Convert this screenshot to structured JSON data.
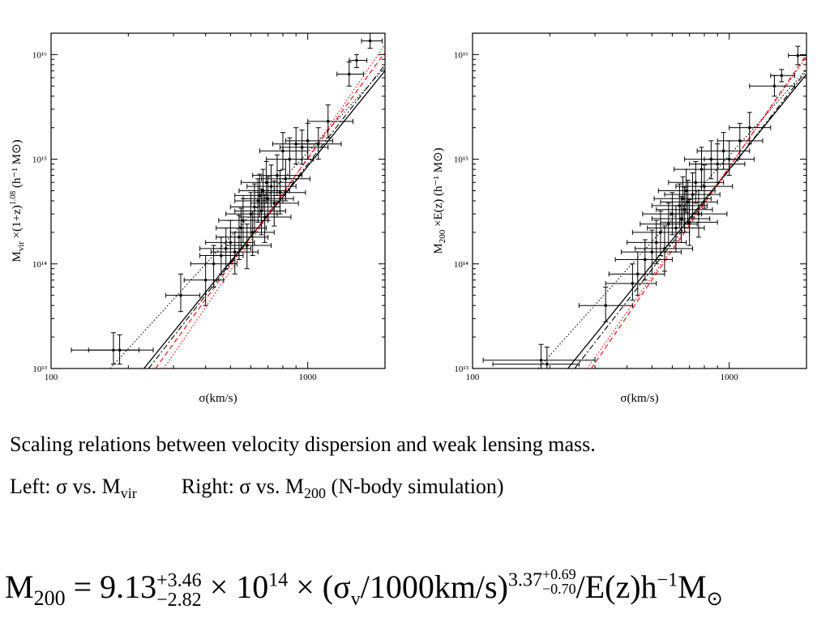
{
  "chart_data": [
    {
      "type": "scatter",
      "panel": "left",
      "xlabel": "σ(km/s)",
      "ylabel_main": "M",
      "ylabel_sub": "vir",
      "ylabel_rest": " ×(1+z)",
      "ylabel_sup": "1.08",
      "ylabel_units": " (h⁻¹ M⊙)",
      "x_scale": "log",
      "y_scale": "log",
      "xlim": [
        100,
        2000
      ],
      "ylim": [
        10000000000000.0,
        1.6e+16
      ],
      "x_ticks": [
        {
          "v": 100,
          "label": "100"
        },
        {
          "v": 1000,
          "label": "1000"
        }
      ],
      "y_ticks": [
        {
          "v": 10000000000000.0,
          "label": "10¹³"
        },
        {
          "v": 100000000000000.0,
          "label": "10¹⁴"
        },
        {
          "v": 1000000000000000.0,
          "label": "10¹⁵"
        },
        {
          "v": 1e+16,
          "label": "10¹⁶"
        }
      ],
      "points": [
        [
          175,
          15000000000000.0,
          140,
          220,
          11000000000000.0,
          22000000000000.0
        ],
        [
          185,
          15000000000000.0,
          120,
          250,
          11000000000000.0,
          21000000000000.0
        ],
        [
          320,
          50000000000000.0,
          280,
          380,
          35000000000000.0,
          80000000000000.0
        ],
        [
          400,
          70000000000000.0,
          330,
          470,
          40000000000000.0,
          120000000000000.0
        ],
        [
          430,
          100000000000000.0,
          350,
          530,
          60000000000000.0,
          150000000000000.0
        ],
        [
          460,
          120000000000000.0,
          380,
          560,
          80000000000000.0,
          180000000000000.0
        ],
        [
          480,
          140000000000000.0,
          380,
          600,
          90000000000000.0,
          220000000000000.0
        ],
        [
          500,
          160000000000000.0,
          400,
          620,
          100000000000000.0,
          260000000000000.0
        ],
        [
          520,
          130000000000000.0,
          420,
          640,
          80000000000000.0,
          200000000000000.0
        ],
        [
          540,
          180000000000000.0,
          440,
          700,
          110000000000000.0,
          290000000000000.0
        ],
        [
          550,
          220000000000000.0,
          440,
          690,
          140000000000000.0,
          340000000000000.0
        ],
        [
          560,
          260000000000000.0,
          450,
          700,
          160000000000000.0,
          420000000000000.0
        ],
        [
          580,
          150000000000000.0,
          480,
          720,
          90000000000000.0,
          240000000000000.0
        ],
        [
          600,
          300000000000000.0,
          480,
          760,
          180000000000000.0,
          480000000000000.0
        ],
        [
          610,
          200000000000000.0,
          500,
          740,
          120000000000000.0,
          320000000000000.0
        ],
        [
          620,
          350000000000000.0,
          500,
          780,
          200000000000000.0,
          580000000000000.0
        ],
        [
          640,
          400000000000000.0,
          520,
          800,
          250000000000000.0,
          650000000000000.0
        ],
        [
          650,
          450000000000000.0,
          520,
          820,
          280000000000000.0,
          720000000000000.0
        ],
        [
          660,
          320000000000000.0,
          520,
          820,
          190000000000000.0,
          520000000000000.0
        ],
        [
          670,
          500000000000000.0,
          540,
          850,
          320000000000000.0,
          800000000000000.0
        ],
        [
          680,
          280000000000000.0,
          540,
          860,
          160000000000000.0,
          460000000000000.0
        ],
        [
          690,
          600000000000000.0,
          550,
          880,
          380000000000000.0,
          950000000000000.0
        ],
        [
          700,
          420000000000000.0,
          560,
          880,
          260000000000000.0,
          680000000000000.0
        ],
        [
          720,
          550000000000000.0,
          580,
          900,
          350000000000000.0,
          880000000000000.0
        ],
        [
          740,
          380000000000000.0,
          600,
          920,
          230000000000000.0,
          620000000000000.0
        ],
        [
          760,
          700000000000000.0,
          610,
          950,
          450000000000000.0,
          1100000000000000.0
        ],
        [
          780,
          480000000000000.0,
          620,
          980,
          300000000000000.0,
          780000000000000.0
        ],
        [
          800,
          1200000000000000.0,
          650,
          1000,
          800000000000000.0,
          1800000000000000.0
        ],
        [
          820,
          650000000000000.0,
          660,
          1020,
          400000000000000.0,
          1000000000000000.0
        ],
        [
          850,
          1000000000000000.0,
          690,
          1050,
          650000000000000.0,
          1600000000000000.0
        ],
        [
          900,
          1400000000000000.0,
          730,
          1100,
          900000000000000.0,
          2000000000000000.0
        ],
        [
          950,
          1300000000000000.0,
          780,
          1200,
          900000000000000.0,
          1900000000000000.0
        ],
        [
          1000,
          1500000000000000.0,
          820,
          1250,
          1000000000000000.0,
          2200000000000000.0
        ],
        [
          1100,
          1400000000000000.0,
          900,
          1350,
          1000000000000000.0,
          2000000000000000.0
        ],
        [
          1200,
          2300000000000000.0,
          1000,
          1500,
          1600000000000000.0,
          3300000000000000.0
        ],
        [
          1450,
          6500000000000000.0,
          1300,
          1650,
          5000000000000000.0,
          8500000000000000.0
        ],
        [
          1550,
          8800000000000000.0,
          1450,
          1700,
          7500000000000000.0,
          1e+16
        ],
        [
          1750,
          1.35e+16,
          1620,
          1950,
          1.15e+16,
          1.6e+16
        ]
      ],
      "fit_lines": [
        {
          "style": "solid",
          "color": "#000000",
          "p1": [
            230,
            10000000000000.0
          ],
          "p2": [
            2000,
            7000000000000000.0
          ]
        },
        {
          "style": "dashdot",
          "color": "#000000",
          "p1": [
            240,
            10000000000000.0
          ],
          "p2": [
            2000,
            8000000000000000.0
          ]
        },
        {
          "style": "dotted",
          "color": "#000000",
          "p1": [
            170,
            10000000000000.0
          ],
          "p2": [
            2000,
            7500000000000000.0
          ]
        },
        {
          "style": "dotted",
          "color": "#ff0000",
          "p1": [
            275,
            10000000000000.0
          ],
          "p2": [
            2000,
            1.25e+16
          ]
        },
        {
          "style": "dashed",
          "color": "#ff0000",
          "p1": [
            255,
            10000000000000.0
          ],
          "p2": [
            2000,
            1.05e+16
          ]
        }
      ]
    },
    {
      "type": "scatter",
      "panel": "right",
      "xlabel": "σ(km/s)",
      "ylabel_main": "M",
      "ylabel_sub": "200",
      "ylabel_rest": " ×E(z)",
      "ylabel_sup": "",
      "ylabel_units": " (h⁻¹ M⊙)",
      "x_scale": "log",
      "y_scale": "log",
      "xlim": [
        100,
        2000
      ],
      "ylim": [
        10000000000000.0,
        1.6e+16
      ],
      "x_ticks": [
        {
          "v": 100,
          "label": "100"
        },
        {
          "v": 1000,
          "label": "1000"
        }
      ],
      "y_ticks": [
        {
          "v": 10000000000000.0,
          "label": "10¹³"
        },
        {
          "v": 100000000000000.0,
          "label": "10¹⁴"
        },
        {
          "v": 1000000000000000.0,
          "label": "10¹⁵"
        },
        {
          "v": 1e+16,
          "label": "10¹⁶"
        }
      ],
      "points": [
        [
          185,
          12000000000000.0,
          110,
          300,
          8000000000000.0,
          17000000000000.0
        ],
        [
          195,
          11000000000000.0,
          120,
          260,
          8000000000000.0,
          16000000000000.0
        ],
        [
          330,
          40000000000000.0,
          260,
          420,
          28000000000000.0,
          60000000000000.0
        ],
        [
          420,
          65000000000000.0,
          330,
          520,
          45000000000000.0,
          100000000000000.0
        ],
        [
          440,
          80000000000000.0,
          340,
          560,
          50000000000000.0,
          130000000000000.0
        ],
        [
          470,
          110000000000000.0,
          360,
          600,
          70000000000000.0,
          170000000000000.0
        ],
        [
          500,
          130000000000000.0,
          380,
          650,
          80000000000000.0,
          210000000000000.0
        ],
        [
          520,
          160000000000000.0,
          400,
          680,
          100000000000000.0,
          260000000000000.0
        ],
        [
          540,
          200000000000000.0,
          420,
          700,
          120000000000000.0,
          320000000000000.0
        ],
        [
          560,
          140000000000000.0,
          430,
          720,
          85000000000000.0,
          230000000000000.0
        ],
        [
          580,
          240000000000000.0,
          450,
          750,
          150000000000000.0,
          380000000000000.0
        ],
        [
          600,
          300000000000000.0,
          460,
          780,
          190000000000000.0,
          480000000000000.0
        ],
        [
          620,
          220000000000000.0,
          480,
          800,
          130000000000000.0,
          360000000000000.0
        ],
        [
          640,
          360000000000000.0,
          500,
          820,
          220000000000000.0,
          580000000000000.0
        ],
        [
          650,
          270000000000000.0,
          500,
          840,
          160000000000000.0,
          440000000000000.0
        ],
        [
          660,
          420000000000000.0,
          510,
          850,
          260000000000000.0,
          680000000000000.0
        ],
        [
          670,
          330000000000000.0,
          520,
          860,
          200000000000000.0,
          540000000000000.0
        ],
        [
          680,
          500000000000000.0,
          530,
          880,
          310000000000000.0,
          800000000000000.0
        ],
        [
          690,
          390000000000000.0,
          540,
          900,
          240000000000000.0,
          630000000000000.0
        ],
        [
          700,
          250000000000000.0,
          540,
          900,
          150000000000000.0,
          410000000000000.0
        ],
        [
          720,
          460000000000000.0,
          560,
          920,
          280000000000000.0,
          740000000000000.0
        ],
        [
          740,
          600000000000000.0,
          580,
          950,
          380000000000000.0,
          950000000000000.0
        ],
        [
          760,
          300000000000000.0,
          590,
          980,
          180000000000000.0,
          500000000000000.0
        ],
        [
          780,
          800000000000000.0,
          610,
          1000,
          500000000000000.0,
          1300000000000000.0
        ],
        [
          800,
          550000000000000.0,
          620,
          1030,
          340000000000000.0,
          880000000000000.0
        ],
        [
          850,
          1000000000000000.0,
          670,
          1080,
          650000000000000.0,
          1500000000000000.0
        ],
        [
          900,
          900000000000000.0,
          700,
          1150,
          600000000000000.0,
          1400000000000000.0
        ],
        [
          950,
          1200000000000000.0,
          750,
          1200,
          800000000000000.0,
          1800000000000000.0
        ],
        [
          1000,
          1000000000000000.0,
          800,
          1250,
          700000000000000.0,
          1500000000000000.0
        ],
        [
          1100,
          1500000000000000.0,
          900,
          1350,
          1000000000000000.0,
          2200000000000000.0
        ],
        [
          1200,
          2000000000000000.0,
          1000,
          1450,
          1400000000000000.0,
          2800000000000000.0
        ],
        [
          1500,
          5000000000000000.0,
          1200,
          1800,
          4000000000000000.0,
          6300000000000000.0
        ],
        [
          1600,
          6300000000000000.0,
          1450,
          1800,
          5500000000000000.0,
          7200000000000000.0
        ],
        [
          1850,
          9800000000000000.0,
          1700,
          2000,
          8000000000000000.0,
          1.2e+16
        ]
      ],
      "fit_lines": [
        {
          "style": "solid",
          "color": "#000000",
          "p1": [
            235,
            10000000000000.0
          ],
          "p2": [
            2000,
            6500000000000000.0
          ]
        },
        {
          "style": "dashdot",
          "color": "#000000",
          "p1": [
            250,
            10000000000000.0
          ],
          "p2": [
            2000,
            7000000000000000.0
          ]
        },
        {
          "style": "dotted",
          "color": "#000000",
          "p1": [
            180,
            10000000000000.0
          ],
          "p2": [
            2000,
            7200000000000000.0
          ]
        },
        {
          "style": "dotted",
          "color": "#ff0000",
          "p1": [
            280,
            10000000000000.0
          ],
          "p2": [
            2000,
            9500000000000000.0
          ]
        },
        {
          "style": "dashed",
          "color": "#ff0000",
          "p1": [
            290,
            10000000000000.0
          ],
          "p2": [
            2000,
            1e+16
          ]
        }
      ]
    }
  ],
  "caption": {
    "line1": "Scaling relations between velocity dispersion and weak lensing mass.",
    "left_prefix": "Left: σ vs. M",
    "left_sub": "vir",
    "right_prefix": "Right: σ vs. M",
    "right_sub": "200",
    "right_suffix": " (N-body simulation)"
  },
  "formula": {
    "lhs": "M",
    "lhs_sub": "200",
    "eq": " = 9.13",
    "coef_plus": "+3.46",
    "coef_minus": "−2.82",
    "mid": " × 10",
    "exp": "14",
    "mid2": " × (σ",
    "sigma_sub": "v",
    "mid3": "/1000km/s)",
    "power": "3.37",
    "power_plus": "+0.69",
    "power_minus": "−0.70",
    "tail": "/E(z)h",
    "tail_sup": "−1",
    "tail_m": "M",
    "tail_sub": "⊙"
  }
}
